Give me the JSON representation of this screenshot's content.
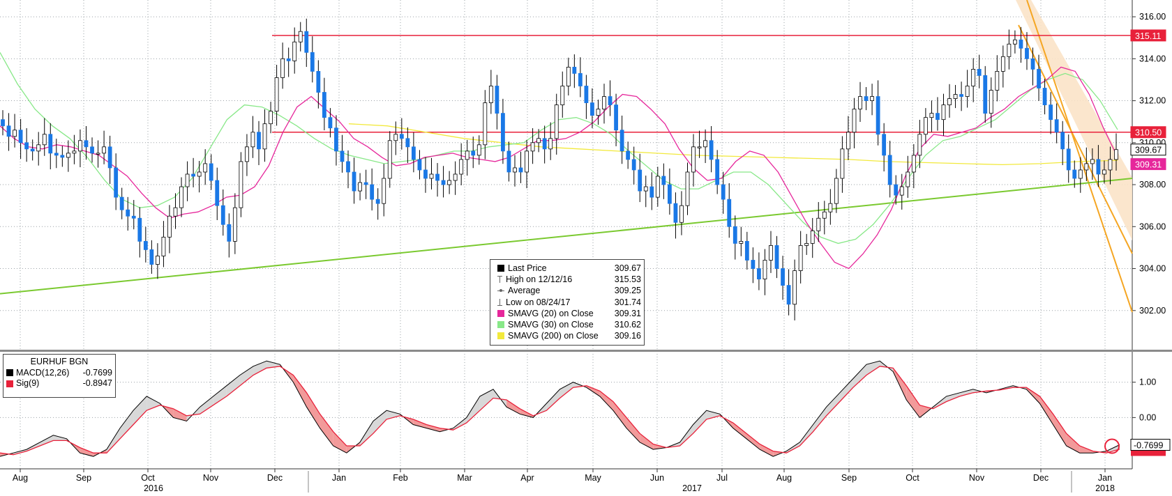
{
  "chart_data": [
    {
      "type": "candlestick",
      "instrument": "EURHUF BGN",
      "ylim": [
        300.2,
        316.6
      ],
      "y_ticks": [
        "316.00",
        "314.00",
        "312.00",
        "310.00",
        "308.00",
        "306.00",
        "304.00",
        "302.00"
      ],
      "series": [
        {
          "name": "Last Price",
          "key": "price",
          "values": [
            310.8,
            310.3,
            310.6,
            310.0,
            309.7,
            309.6,
            309.9,
            310.4,
            309.5,
            309.4,
            309.3,
            309.5,
            309.6,
            310.1,
            309.8,
            309.5,
            309.5,
            309.8,
            308.8,
            307.4,
            306.8,
            306.5,
            306.4,
            305.3,
            304.9,
            304.2,
            304.6,
            305.5,
            306.5,
            306.9,
            307.9,
            308.5,
            308.4,
            308.6,
            309.0,
            308.2,
            307.0,
            306.1,
            305.3,
            306.9,
            309.1,
            309.8,
            310.5,
            309.7,
            310.9,
            311.5,
            313.1,
            314.0,
            313.9,
            314.8,
            315.3,
            314.3,
            313.4,
            312.4,
            311.2,
            310.7,
            309.6,
            309.1,
            308.6,
            307.7,
            308.1,
            308.0,
            307.3,
            307.1,
            308.3,
            310.1,
            310.4,
            310.2,
            309.8,
            309.2,
            308.7,
            308.3,
            308.5,
            308.2,
            308.0,
            308.2,
            308.5,
            309.2,
            309.6,
            309.4,
            309.9,
            311.9,
            312.7,
            311.4,
            309.6,
            308.6,
            308.8,
            308.6,
            309.6,
            310.0,
            310.2,
            309.7,
            310.2,
            311.8,
            312.7,
            313.6,
            313.3,
            312.7,
            311.9,
            311.3,
            311.6,
            312.2,
            311.8,
            310.6,
            309.6,
            309.2,
            308.7,
            307.7,
            307.9,
            307.4,
            308.4,
            308.0,
            307.1,
            306.2,
            307.0,
            308.6,
            309.8,
            309.8,
            310.1,
            309.2,
            308.0,
            307.3,
            306.0,
            305.2,
            305.3,
            304.4,
            304.0,
            303.5,
            304.4,
            305.1,
            304.0,
            303.2,
            302.3,
            303.9,
            305.1,
            305.2,
            305.8,
            306.4,
            306.7,
            307.1,
            308.3,
            309.7,
            310.5,
            311.6,
            312.2,
            312.0,
            312.2,
            310.4,
            309.4,
            308.0,
            307.5,
            307.9,
            308.6,
            309.4,
            310.4,
            311.2,
            311.4,
            311.1,
            311.8,
            312.1,
            312.3,
            312.2,
            312.7,
            313.5,
            313.2,
            311.4,
            312.5,
            313.4,
            314.1,
            314.7,
            314.9,
            314.5,
            314.0,
            313.5,
            312.6,
            311.8,
            311.1,
            310.5,
            309.7,
            308.7,
            308.3,
            308.7,
            309.0,
            309.2,
            308.5,
            308.7,
            309.2,
            309.67
          ]
        },
        {
          "name": "SMAVG (20) on Close",
          "key": "sma20",
          "color": "#e6279b",
          "values": [
            310.8,
            310.2,
            309.8,
            309.7,
            309.9,
            309.8,
            309.6,
            309.4,
            308.9,
            308.4,
            307.6,
            306.9,
            306.4,
            306.6,
            306.7,
            307.0,
            307.4,
            307.5,
            307.9,
            308.9,
            310.5,
            311.7,
            312.2,
            311.6,
            311.0,
            310.2,
            309.8,
            309.3,
            308.9,
            309.0,
            309.3,
            309.4,
            309.5,
            309.3,
            309.2,
            309.1,
            309.3,
            309.7,
            310.1,
            310.1,
            310.2,
            310.5,
            311.0,
            311.7,
            312.3,
            312.2,
            311.6,
            310.9,
            309.7,
            308.8,
            308.2,
            308.3,
            309.1,
            309.6,
            309.4,
            308.6,
            307.4,
            306.2,
            305.2,
            304.3,
            304.0,
            304.7,
            305.6,
            306.8,
            308.4,
            309.7,
            310.4,
            310.3,
            310.5,
            310.7,
            311.2,
            311.6,
            312.2,
            312.6,
            313.0,
            313.6,
            313.4,
            312.3,
            310.7,
            309.31
          ]
        },
        {
          "name": "SMAVG (30) on Close",
          "key": "sma30",
          "color": "#88e888",
          "values": [
            314.3,
            312.8,
            311.6,
            310.8,
            310.2,
            309.3,
            308.2,
            307.3,
            306.9,
            307.0,
            307.4,
            308.3,
            309.7,
            311.1,
            311.8,
            311.7,
            311.3,
            310.8,
            310.2,
            309.7,
            309.4,
            309.2,
            309.0,
            309.1,
            309.2,
            309.4,
            309.6,
            309.6,
            309.8,
            309.9,
            310.0,
            310.6,
            311.1,
            311.2,
            310.9,
            310.4,
            309.6,
            308.9,
            308.2,
            307.8,
            307.8,
            308.2,
            308.6,
            308.6,
            308.0,
            307.1,
            306.2,
            305.5,
            305.2,
            305.4,
            306.1,
            307.1,
            308.3,
            309.4,
            310.1,
            310.3,
            310.7,
            311.1,
            311.8,
            312.5,
            313.0,
            313.3,
            313.0,
            312.0,
            310.62
          ]
        },
        {
          "name": "SMAVG (200) on Close",
          "key": "sma200",
          "color": "#f2e93c",
          "values": [
            310.9,
            310.8,
            310.5,
            310.2,
            310.0,
            309.8,
            309.7,
            309.6,
            309.5,
            309.4,
            309.35,
            309.3,
            309.25,
            309.2,
            309.1,
            309.05,
            309.0,
            308.95,
            309.0,
            309.1,
            309.16
          ]
        }
      ],
      "legend": [
        {
          "key": "last",
          "mark": "box",
          "color": "#000000",
          "label": "Last Price",
          "value": "309.67"
        },
        {
          "key": "high",
          "mark": "high",
          "color": "#666666",
          "label": "High on 12/12/16",
          "value": "315.53"
        },
        {
          "key": "avg",
          "mark": "avg",
          "color": "#666666",
          "label": "Average",
          "value": "309.25"
        },
        {
          "key": "low",
          "mark": "low",
          "color": "#666666",
          "label": "Low on 08/24/17",
          "value": "301.74"
        },
        {
          "key": "sma20",
          "mark": "box",
          "color": "#e6279b",
          "label": "SMAVG (20) on Close",
          "value": "309.31"
        },
        {
          "key": "sma30",
          "mark": "box",
          "color": "#88e888",
          "label": "SMAVG (30) on Close",
          "value": "310.62"
        },
        {
          "key": "sma200",
          "mark": "box",
          "color": "#f2e93c",
          "label": "SMAVG (200) on Close",
          "value": "309.16"
        }
      ],
      "levels": [
        {
          "value": 315.11,
          "label": "315.11",
          "color": "#e8213a"
        },
        {
          "value": 310.5,
          "label": "310.50",
          "color": "#e8213a"
        }
      ],
      "tags": [
        {
          "value": 309.67,
          "label": "309.67",
          "bg": "#ffffff",
          "fg": "#000000"
        },
        {
          "value": 309.31,
          "label": "309.31",
          "bg": "#e6279b",
          "fg": "#ffffff"
        }
      ],
      "trendline": {
        "color": "#7ac92f",
        "from": 302.8,
        "to": 308.3
      },
      "channel": {
        "color": "#f5a623",
        "fill": "#fbe3c8"
      }
    },
    {
      "type": "line",
      "title": "EURHUF BGN",
      "ylim": [
        -1.45,
        1.8
      ],
      "y_ticks": [
        "1.00",
        "0.00",
        "-0.7699"
      ],
      "series": [
        {
          "name": "MACD(12,26)",
          "key": "macd",
          "color": "#000000",
          "value": "-0.7699",
          "values": [
            -1.1,
            -1.0,
            -0.9,
            -0.7,
            -0.5,
            -0.6,
            -1.0,
            -1.1,
            -0.9,
            -0.3,
            0.2,
            0.6,
            0.4,
            0.0,
            -0.1,
            0.3,
            0.6,
            0.9,
            1.2,
            1.45,
            1.6,
            1.5,
            1.0,
            0.3,
            -0.3,
            -0.8,
            -1.0,
            -0.7,
            -0.1,
            0.2,
            0.1,
            -0.2,
            -0.3,
            -0.4,
            -0.3,
            0.0,
            0.6,
            0.8,
            0.3,
            0.1,
            0.0,
            0.4,
            0.8,
            1.0,
            0.85,
            0.6,
            0.2,
            -0.3,
            -0.7,
            -0.9,
            -0.85,
            -0.7,
            -0.2,
            0.2,
            0.1,
            -0.3,
            -0.6,
            -0.9,
            -1.1,
            -0.95,
            -0.7,
            -0.2,
            0.3,
            0.7,
            1.1,
            1.5,
            1.6,
            1.3,
            0.5,
            0.0,
            0.3,
            0.6,
            0.7,
            0.8,
            0.7,
            0.8,
            0.9,
            0.8,
            0.4,
            -0.2,
            -0.8,
            -1.0,
            -1.0,
            -0.95,
            -0.7699
          ]
        },
        {
          "name": "Sig(9)",
          "key": "sig",
          "color": "#e8213a",
          "value": "-0.8947",
          "values": [
            -1.0,
            -1.05,
            -0.95,
            -0.8,
            -0.65,
            -0.65,
            -0.85,
            -1.0,
            -1.0,
            -0.6,
            -0.2,
            0.2,
            0.35,
            0.25,
            0.05,
            0.1,
            0.35,
            0.6,
            0.9,
            1.2,
            1.4,
            1.45,
            1.2,
            0.7,
            0.1,
            -0.4,
            -0.8,
            -0.8,
            -0.45,
            -0.05,
            0.05,
            -0.05,
            -0.2,
            -0.3,
            -0.35,
            -0.15,
            0.2,
            0.55,
            0.5,
            0.25,
            0.05,
            0.2,
            0.55,
            0.85,
            0.9,
            0.75,
            0.45,
            0.0,
            -0.45,
            -0.75,
            -0.85,
            -0.8,
            -0.45,
            -0.05,
            0.05,
            -0.15,
            -0.45,
            -0.75,
            -0.95,
            -1.0,
            -0.8,
            -0.4,
            0.05,
            0.45,
            0.85,
            1.2,
            1.45,
            1.4,
            0.9,
            0.35,
            0.25,
            0.45,
            0.6,
            0.7,
            0.75,
            0.78,
            0.85,
            0.85,
            0.6,
            0.1,
            -0.45,
            -0.8,
            -0.95,
            -1.0,
            -0.8947
          ]
        }
      ],
      "tags": [
        {
          "value": -0.7699,
          "label": "-0.7699",
          "bg": "#ffffff",
          "fg": "#000000"
        }
      ]
    }
  ],
  "x_axis": {
    "months": [
      "Aug",
      "Sep",
      "Oct",
      "Nov",
      "Dec",
      "Jan",
      "Feb",
      "Mar",
      "Apr",
      "May",
      "Jun",
      "Jul",
      "Aug",
      "Sep",
      "Oct",
      "Nov",
      "Dec",
      "Jan"
    ],
    "years": [
      "2016",
      "2017",
      "2018"
    ]
  }
}
